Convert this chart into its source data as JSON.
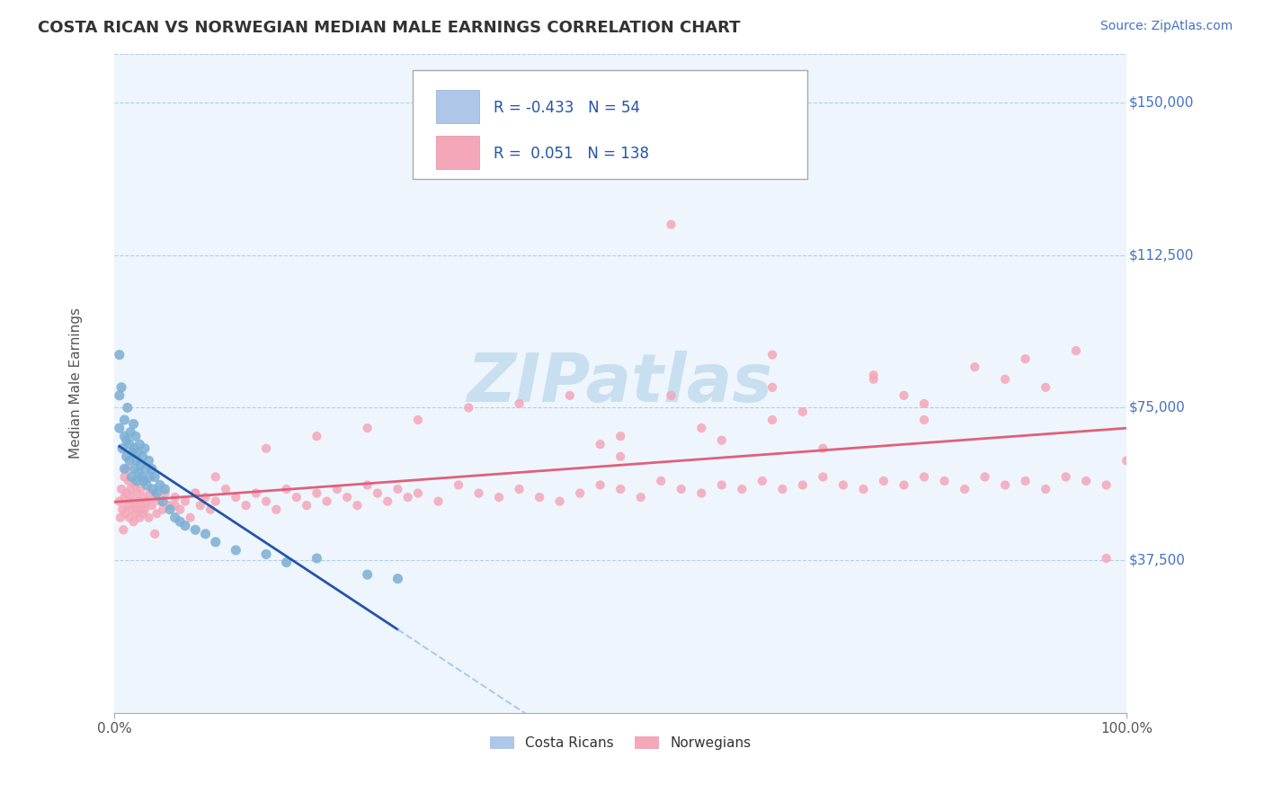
{
  "title": "COSTA RICAN VS NORWEGIAN MEDIAN MALE EARNINGS CORRELATION CHART",
  "source": "Source: ZipAtlas.com",
  "ylabel": "Median Male Earnings",
  "ytick_labels": [
    "$37,500",
    "$75,000",
    "$112,500",
    "$150,000"
  ],
  "ytick_values": [
    37500,
    75000,
    112500,
    150000
  ],
  "xtick_labels": [
    "0.0%",
    "100.0%"
  ],
  "xlim": [
    0.0,
    1.0
  ],
  "ylim": [
    0,
    162000
  ],
  "legend_entries": [
    {
      "label": "Costa Ricans",
      "R": -0.433,
      "N": 54,
      "color": "#aec6e8"
    },
    {
      "label": "Norwegians",
      "R": 0.051,
      "N": 138,
      "color": "#f4a7b9"
    }
  ],
  "background_color": "#eef5fc",
  "grid_color": "#b8cfe0",
  "title_color": "#333333",
  "source_color": "#4472c4",
  "watermark_text": "ZIPatlas",
  "watermark_color": "#c8dff0",
  "costa_rican_scatter_color": "#7bafd4",
  "norwegian_scatter_color": "#f4a7b9",
  "costa_rican_line_color": "#2255aa",
  "norwegian_line_color": "#e0607a",
  "costa_rican_regression_dashed_color": "#aaccee",
  "costa_ricans_x": [
    0.005,
    0.005,
    0.005,
    0.007,
    0.008,
    0.01,
    0.01,
    0.01,
    0.012,
    0.012,
    0.013,
    0.015,
    0.015,
    0.016,
    0.017,
    0.018,
    0.019,
    0.02,
    0.02,
    0.021,
    0.022,
    0.022,
    0.023,
    0.024,
    0.025,
    0.026,
    0.027,
    0.028,
    0.029,
    0.03,
    0.031,
    0.032,
    0.034,
    0.035,
    0.037,
    0.038,
    0.04,
    0.042,
    0.045,
    0.048,
    0.05,
    0.055,
    0.06,
    0.065,
    0.07,
    0.08,
    0.09,
    0.1,
    0.12,
    0.15,
    0.17,
    0.2,
    0.25,
    0.28
  ],
  "costa_ricans_y": [
    88000,
    78000,
    70000,
    80000,
    65000,
    68000,
    72000,
    60000,
    67000,
    63000,
    75000,
    66000,
    62000,
    69000,
    58000,
    64000,
    71000,
    65000,
    60000,
    68000,
    62000,
    57000,
    64000,
    59000,
    66000,
    61000,
    58000,
    63000,
    57000,
    65000,
    60000,
    56000,
    62000,
    58000,
    60000,
    55000,
    58000,
    54000,
    56000,
    52000,
    55000,
    50000,
    48000,
    47000,
    46000,
    45000,
    44000,
    42000,
    40000,
    39000,
    37000,
    38000,
    34000,
    33000
  ],
  "norwegians_x": [
    0.005,
    0.006,
    0.007,
    0.008,
    0.009,
    0.01,
    0.01,
    0.011,
    0.012,
    0.012,
    0.013,
    0.014,
    0.015,
    0.015,
    0.016,
    0.017,
    0.018,
    0.019,
    0.02,
    0.02,
    0.021,
    0.022,
    0.023,
    0.024,
    0.025,
    0.026,
    0.027,
    0.028,
    0.029,
    0.03,
    0.032,
    0.034,
    0.035,
    0.037,
    0.04,
    0.042,
    0.045,
    0.048,
    0.05,
    0.055,
    0.06,
    0.065,
    0.07,
    0.075,
    0.08,
    0.085,
    0.09,
    0.095,
    0.1,
    0.11,
    0.12,
    0.13,
    0.14,
    0.15,
    0.16,
    0.17,
    0.18,
    0.19,
    0.2,
    0.21,
    0.22,
    0.23,
    0.24,
    0.25,
    0.26,
    0.27,
    0.28,
    0.29,
    0.3,
    0.32,
    0.34,
    0.36,
    0.38,
    0.4,
    0.42,
    0.44,
    0.46,
    0.48,
    0.5,
    0.52,
    0.54,
    0.56,
    0.58,
    0.6,
    0.62,
    0.64,
    0.66,
    0.68,
    0.7,
    0.72,
    0.74,
    0.76,
    0.78,
    0.8,
    0.82,
    0.84,
    0.86,
    0.88,
    0.9,
    0.92,
    0.94,
    0.96,
    0.98,
    1.0,
    0.55,
    0.65,
    0.75,
    0.45,
    0.35,
    0.3,
    0.25,
    0.2,
    0.15,
    0.1,
    0.08,
    0.06,
    0.04,
    0.5,
    0.6,
    0.7,
    0.8,
    0.4,
    0.55,
    0.65,
    0.75,
    0.85,
    0.9,
    0.95,
    0.5,
    0.65,
    0.8,
    0.92,
    0.48,
    0.58,
    0.68,
    0.78,
    0.88,
    0.98
  ],
  "norwegians_y": [
    52000,
    48000,
    55000,
    50000,
    45000,
    58000,
    53000,
    49000,
    60000,
    54000,
    51000,
    57000,
    53000,
    48000,
    55000,
    50000,
    52000,
    47000,
    56000,
    51000,
    49000,
    54000,
    50000,
    52000,
    48000,
    55000,
    51000,
    49000,
    53000,
    50000,
    52000,
    48000,
    54000,
    51000,
    53000,
    49000,
    52000,
    50000,
    54000,
    51000,
    53000,
    50000,
    52000,
    48000,
    54000,
    51000,
    53000,
    50000,
    52000,
    55000,
    53000,
    51000,
    54000,
    52000,
    50000,
    55000,
    53000,
    51000,
    54000,
    52000,
    55000,
    53000,
    51000,
    56000,
    54000,
    52000,
    55000,
    53000,
    54000,
    52000,
    56000,
    54000,
    53000,
    55000,
    53000,
    52000,
    54000,
    56000,
    55000,
    53000,
    57000,
    55000,
    54000,
    56000,
    55000,
    57000,
    55000,
    56000,
    58000,
    56000,
    55000,
    57000,
    56000,
    58000,
    57000,
    55000,
    58000,
    56000,
    57000,
    55000,
    58000,
    57000,
    56000,
    62000,
    120000,
    88000,
    82000,
    78000,
    75000,
    72000,
    70000,
    68000,
    65000,
    58000,
    54000,
    51000,
    44000,
    63000,
    67000,
    65000,
    72000,
    76000,
    78000,
    80000,
    83000,
    85000,
    87000,
    89000,
    68000,
    72000,
    76000,
    80000,
    66000,
    70000,
    74000,
    78000,
    82000,
    38000
  ]
}
